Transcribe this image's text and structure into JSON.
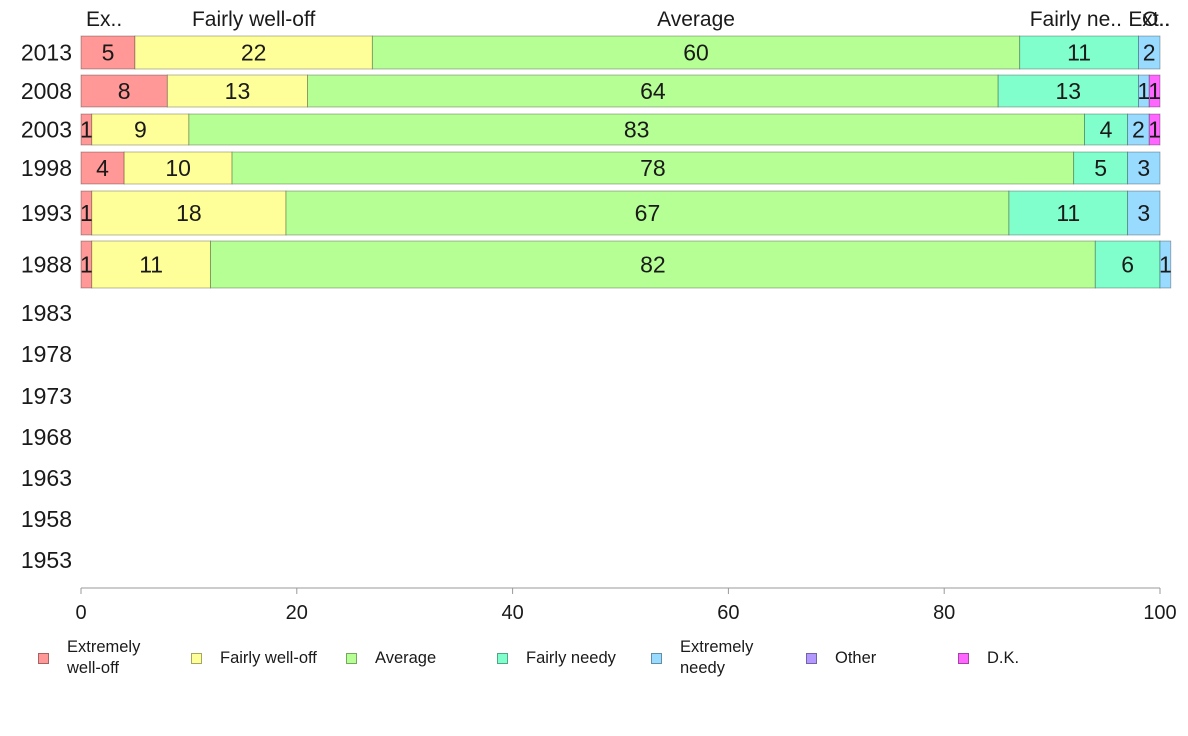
{
  "chart_data": {
    "type": "bar",
    "orientation": "horizontal",
    "stacked": true,
    "categories": [
      "2013",
      "2008",
      "2003",
      "1998",
      "1993",
      "1988",
      "1983",
      "1978",
      "1973",
      "1968",
      "1963",
      "1958",
      "1953"
    ],
    "series": [
      {
        "name": "Extremely well-off",
        "color": "#ff9896",
        "values": [
          5,
          8,
          1,
          4,
          1,
          1,
          null,
          null,
          null,
          null,
          null,
          null,
          null
        ]
      },
      {
        "name": "Fairly well-off",
        "color": "#ffff99",
        "values": [
          22,
          13,
          9,
          10,
          18,
          11,
          null,
          null,
          null,
          null,
          null,
          null,
          null
        ]
      },
      {
        "name": "Average",
        "color": "#b5ff94",
        "values": [
          60,
          64,
          83,
          78,
          67,
          82,
          null,
          null,
          null,
          null,
          null,
          null,
          null
        ]
      },
      {
        "name": "Fairly needy",
        "color": "#80ffcc",
        "values": [
          11,
          13,
          4,
          5,
          11,
          6,
          null,
          null,
          null,
          null,
          null,
          null,
          null
        ]
      },
      {
        "name": "Extremely needy",
        "color": "#99dbff",
        "values": [
          2,
          1,
          2,
          3,
          3,
          1,
          null,
          null,
          null,
          null,
          null,
          null,
          null
        ]
      },
      {
        "name": "Other",
        "color": "#b399ff",
        "values": [
          0,
          0,
          0,
          0,
          0,
          0,
          null,
          null,
          null,
          null,
          null,
          null,
          null
        ]
      },
      {
        "name": "D.K.",
        "color": "#ff66ff",
        "values": [
          0,
          1,
          1,
          0,
          0,
          0,
          null,
          null,
          null,
          null,
          null,
          null,
          null
        ]
      }
    ],
    "top_labels": [
      "Ex..",
      "Fairly well-off",
      "Average",
      "Fairly ne..",
      "Ext..",
      "O.."
    ],
    "legend": [
      {
        "label": "Extremely\nwell-off",
        "color": "#ff9896"
      },
      {
        "label": "Fairly well-off",
        "color": "#ffff99"
      },
      {
        "label": "Average",
        "color": "#b5ff94"
      },
      {
        "label": "Fairly needy",
        "color": "#80ffcc"
      },
      {
        "label": "Extremely\nneedy",
        "color": "#99dbff"
      },
      {
        "label": "Other",
        "color": "#b399ff"
      },
      {
        "label": "D.K.",
        "color": "#ff66ff"
      }
    ],
    "xticks": [
      0,
      20,
      40,
      60,
      80,
      100
    ],
    "xlim": [
      0,
      100
    ],
    "grid": false,
    "legend_position": "bottom",
    "title": "",
    "xlabel": "",
    "ylabel": ""
  }
}
